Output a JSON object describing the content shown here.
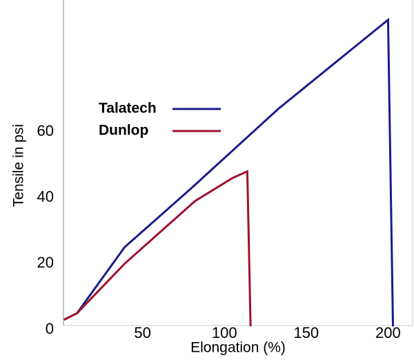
{
  "chart_data": {
    "type": "line",
    "x_label": "Elongation (%)",
    "y_label": "Tensile in psi",
    "xlim": [
      0,
      215
    ],
    "ylim": [
      0,
      100
    ],
    "xticks": [
      50,
      100,
      150,
      200
    ],
    "yticks": [
      0,
      20,
      40,
      60
    ],
    "series": [
      {
        "name": "Talatech",
        "color": "#1a1a8c",
        "x": [
          2,
          10,
          39,
          80,
          133,
          200,
          203
        ],
        "values": [
          3,
          5,
          25,
          43,
          67,
          94,
          1
        ]
      },
      {
        "name": "Dunlop",
        "color": "#a0102e",
        "x": [
          2,
          10,
          39,
          82,
          105,
          114,
          116
        ],
        "values": [
          3,
          5,
          20,
          39,
          46,
          48,
          1
        ]
      }
    ]
  }
}
